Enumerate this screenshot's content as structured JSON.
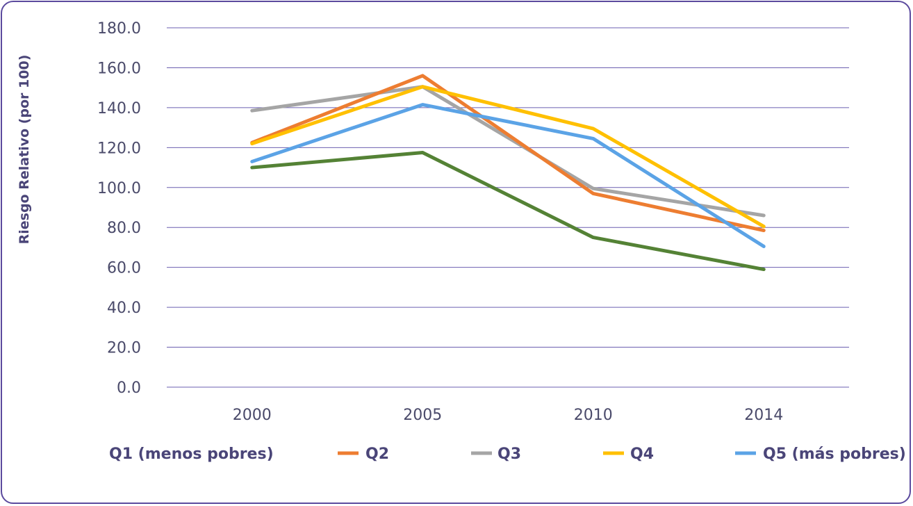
{
  "chart_data": {
    "type": "line",
    "ylabel": "Riesgo Relativo (por 100)",
    "xlabel": "",
    "categories": [
      "2000",
      "2005",
      "2010",
      "2014"
    ],
    "ylim": [
      0,
      180
    ],
    "ytick_step": 20,
    "ytick_labels": [
      "0.0",
      "20.0",
      "40.0",
      "60.0",
      "80.0",
      "100.0",
      "120.0",
      "140.0",
      "160.0",
      "180.0"
    ],
    "grid": true,
    "legend_position": "bottom",
    "series": [
      {
        "name": "Q1 (menos pobres)",
        "color": "#548235",
        "values": [
          110,
          117.5,
          75,
          59
        ]
      },
      {
        "name": "Q2",
        "color": "#ed7d31",
        "values": [
          122.5,
          156,
          97,
          78.5
        ]
      },
      {
        "name": "Q3",
        "color": "#a5a5a5",
        "values": [
          138.5,
          150.5,
          99.5,
          86
        ]
      },
      {
        "name": "Q4",
        "color": "#ffc000",
        "values": [
          122,
          150.5,
          129.5,
          80.5
        ]
      },
      {
        "name": "Q5 (más pobres)",
        "color": "#5ba3e6",
        "values": [
          113,
          141.5,
          124.5,
          70.5
        ]
      }
    ]
  }
}
